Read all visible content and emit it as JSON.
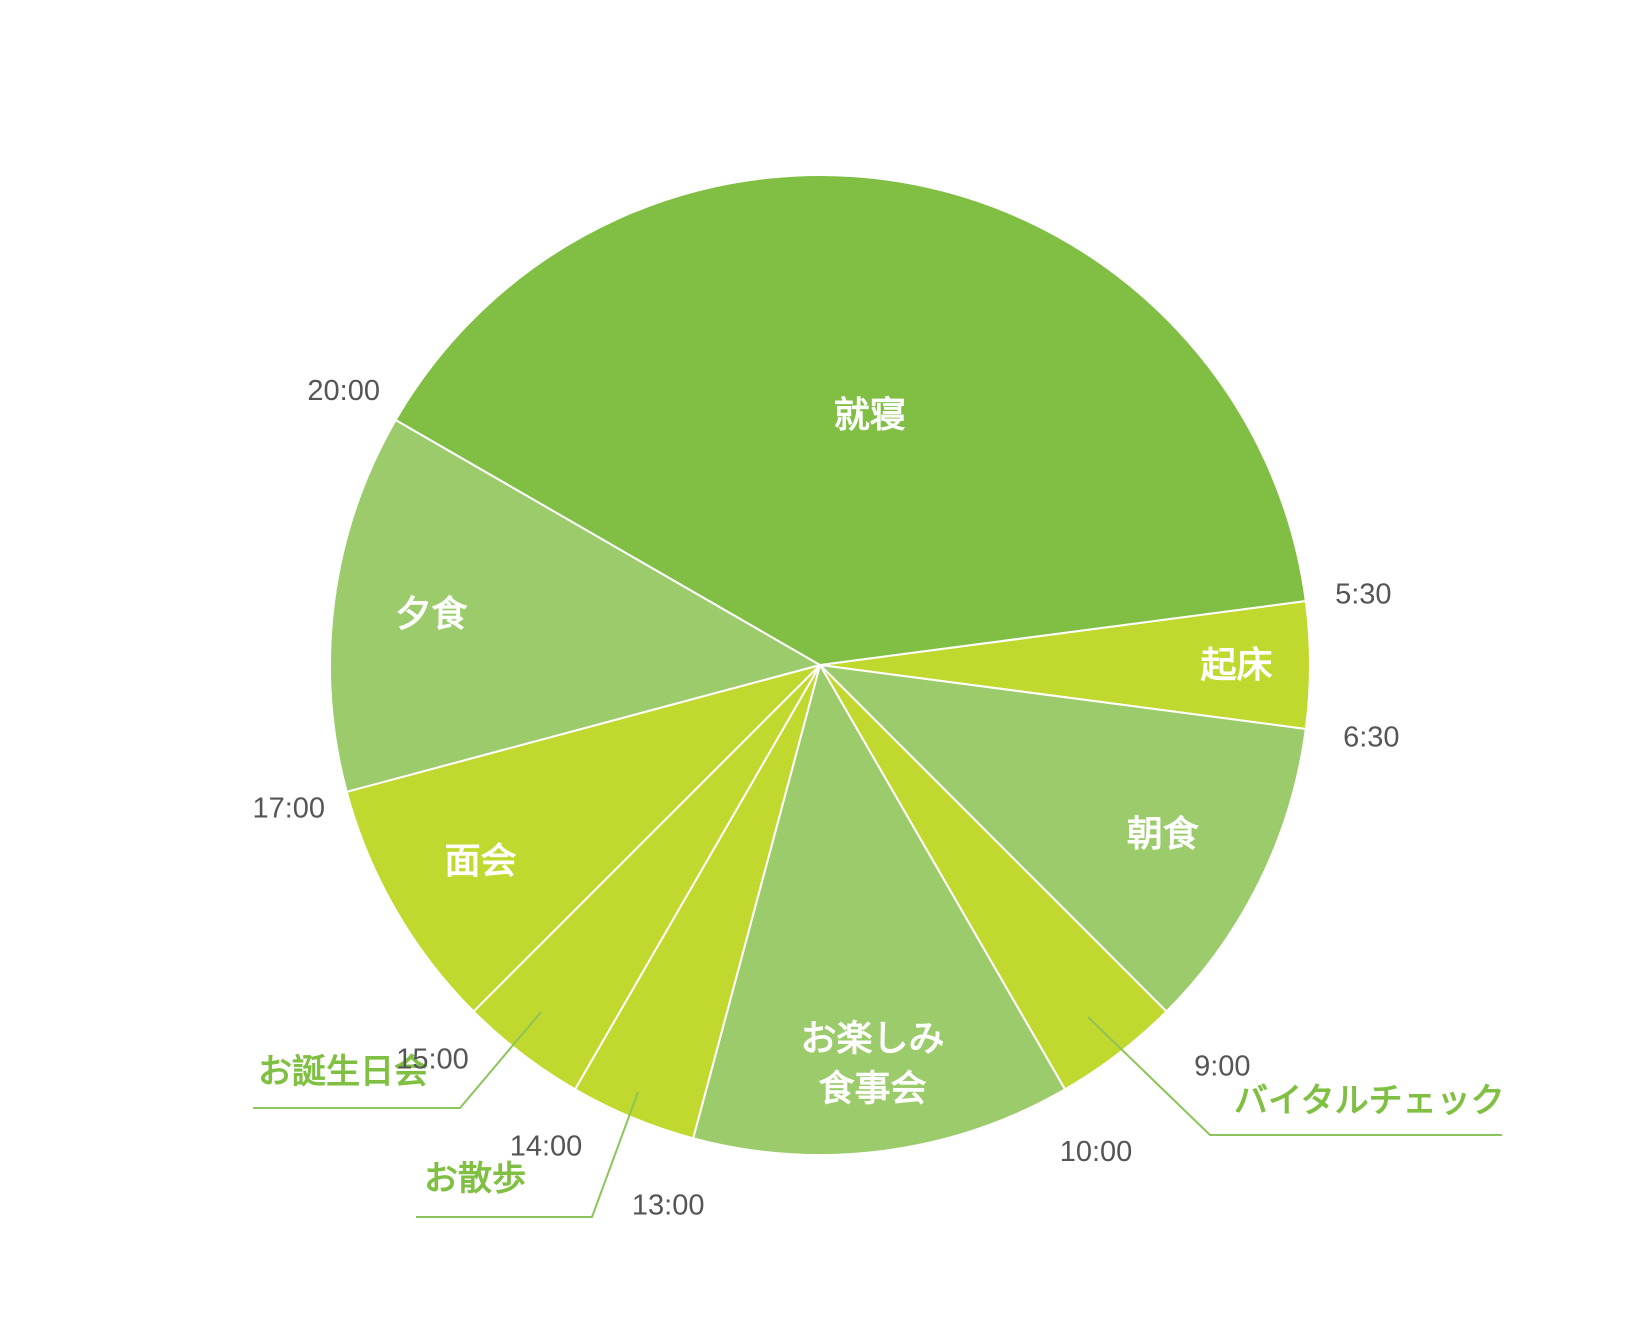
{
  "chart_data": {
    "type": "pie",
    "start_time": "5:30",
    "slices": [
      {
        "label": "起床",
        "time": "6:30",
        "hours": 1,
        "color": "#c1d92e"
      },
      {
        "label": "朝食",
        "time": "9:00",
        "hours": 2.5,
        "color": "#9bcb6b"
      },
      {
        "label": "バイタルチェック",
        "time": "10:00",
        "hours": 1,
        "color": "#c1d92e"
      },
      {
        "label": "お楽しみ\n食事会",
        "time": "13:00",
        "hours": 3,
        "color": "#9bcb6b"
      },
      {
        "label": "お散歩",
        "time": "14:00",
        "hours": 1,
        "color": "#c1d92e"
      },
      {
        "label": "お誕生日会",
        "time": "15:00",
        "hours": 1,
        "color": "#c1d92e"
      },
      {
        "label": "面会",
        "time": "17:00",
        "hours": 2,
        "color": "#c1d92e"
      },
      {
        "label": "夕食",
        "time": "20:00",
        "hours": 3,
        "color": "#9bcb6b"
      },
      {
        "label": "就寝",
        "time": "5:30",
        "hours": 9.5,
        "color": "#80bf43"
      }
    ]
  }
}
